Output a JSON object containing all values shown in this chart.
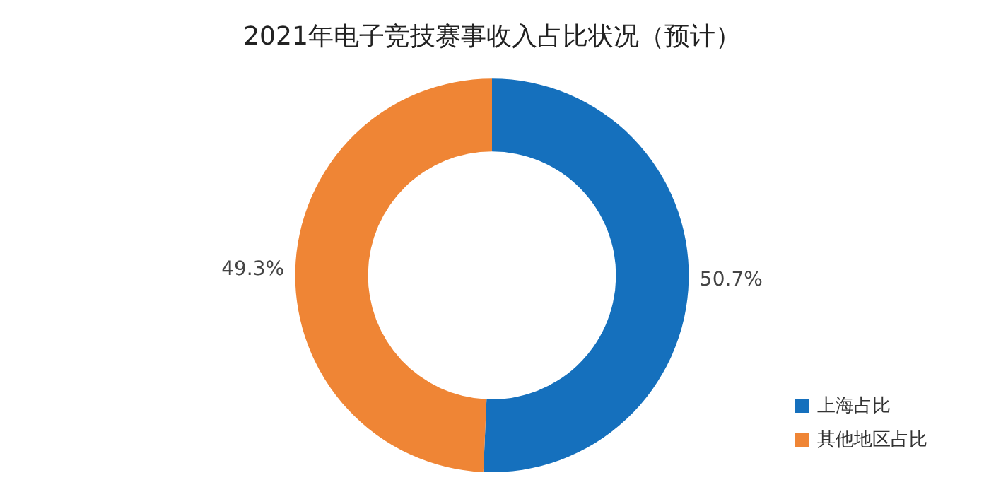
{
  "chart_data": {
    "type": "donut",
    "title": "2021年电子竞技赛事收入占比状况（预计）",
    "categories": [
      "上海占比",
      "其他地区占比"
    ],
    "values": [
      50.7,
      49.3
    ],
    "colors": [
      "#1570bd",
      "#ef8535"
    ],
    "value_labels": [
      "50.7%",
      "49.3%"
    ],
    "legend": "bottom right"
  }
}
